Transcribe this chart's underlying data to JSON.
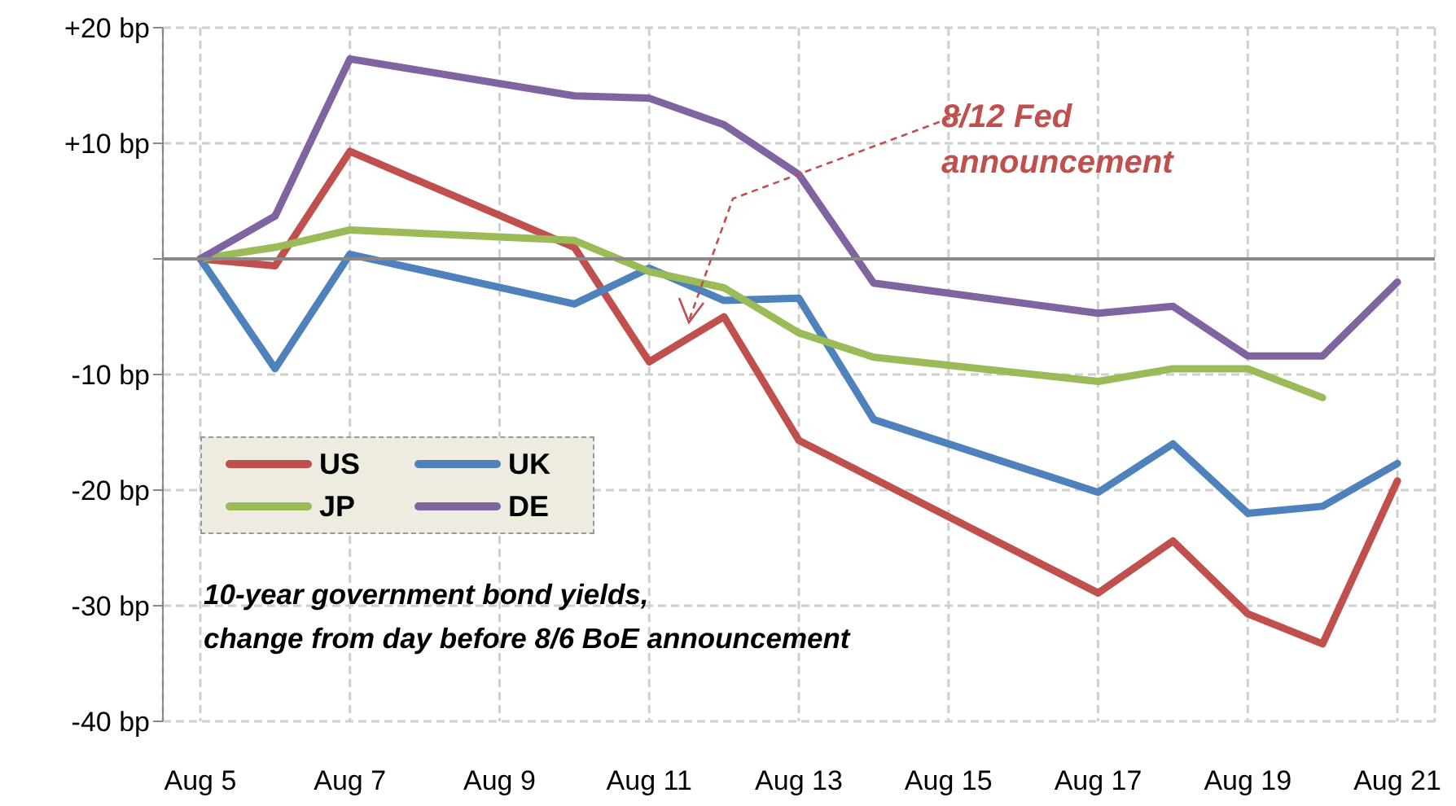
{
  "chart_data": {
    "type": "line",
    "x": [
      "--08-05",
      "--08-06",
      "--08-07",
      "--08-10",
      "--08-11",
      "--08-12",
      "--08-13",
      "--08-14",
      "--08-17",
      "--08-18",
      "--08-19",
      "--08-20",
      "--08-21"
    ],
    "series": [
      {
        "name": "US",
        "color": "#c0504d",
        "values": [
          0,
          -0.6,
          9.3,
          1,
          -8.9,
          -5,
          -15.7,
          -19,
          -28.9,
          -24.4,
          -30.7,
          -33.3,
          -19.2
        ]
      },
      {
        "name": "UK",
        "color": "#4f81bd",
        "values": [
          0,
          -9.5,
          0.4,
          -3.9,
          -0.8,
          -3.6,
          -3.4,
          -13.9,
          -20.2,
          -16,
          -22,
          -21.4,
          -17.7
        ]
      },
      {
        "name": "JP",
        "color": "#9bbb59",
        "values": [
          0,
          1,
          2.5,
          1.6,
          -1.1,
          -2.5,
          -6.4,
          -8.5,
          -10.6,
          -9.5,
          -9.5,
          -12,
          null
        ]
      },
      {
        "name": "DE",
        "color": "#8064a2",
        "values": [
          0,
          3.7,
          17.3,
          14.1,
          13.9,
          11.6,
          7.3,
          -2.1,
          -4.7,
          -4.1,
          -8.4,
          -8.4,
          -2
        ]
      }
    ],
    "xlim": [
      "--08-04T12:00",
      "--08-21T12:00"
    ],
    "xticks": [
      {
        "value": "--08-05",
        "label": "Aug 5"
      },
      {
        "value": "--08-07",
        "label": "Aug 7"
      },
      {
        "value": "--08-09",
        "label": "Aug 9"
      },
      {
        "value": "--08-11",
        "label": "Aug 11"
      },
      {
        "value": "--08-13",
        "label": "Aug 13"
      },
      {
        "value": "--08-15",
        "label": "Aug 15"
      },
      {
        "value": "--08-17",
        "label": "Aug 17"
      },
      {
        "value": "--08-19",
        "label": "Aug 19"
      },
      {
        "value": "--08-21",
        "label": "Aug 21"
      }
    ],
    "ylim": [
      -40,
      20
    ],
    "yticks": [
      {
        "value": 20,
        "label": "+20 bp"
      },
      {
        "value": 10,
        "label": "+10 bp"
      },
      {
        "value": 0,
        "label": null
      },
      {
        "value": -10,
        "label": "-10 bp"
      },
      {
        "value": -20,
        "label": "-20 bp"
      },
      {
        "value": -30,
        "label": "-30 bp"
      },
      {
        "value": -40,
        "label": "-40 bp"
      }
    ],
    "grid": true,
    "legend": "left",
    "marker": "none",
    "line_style": "solid",
    "annotations": [
      "8/12 Fed announcement",
      "10-year government bond yields,\nchange from day before 8/6 BoE announcement"
    ]
  }
}
